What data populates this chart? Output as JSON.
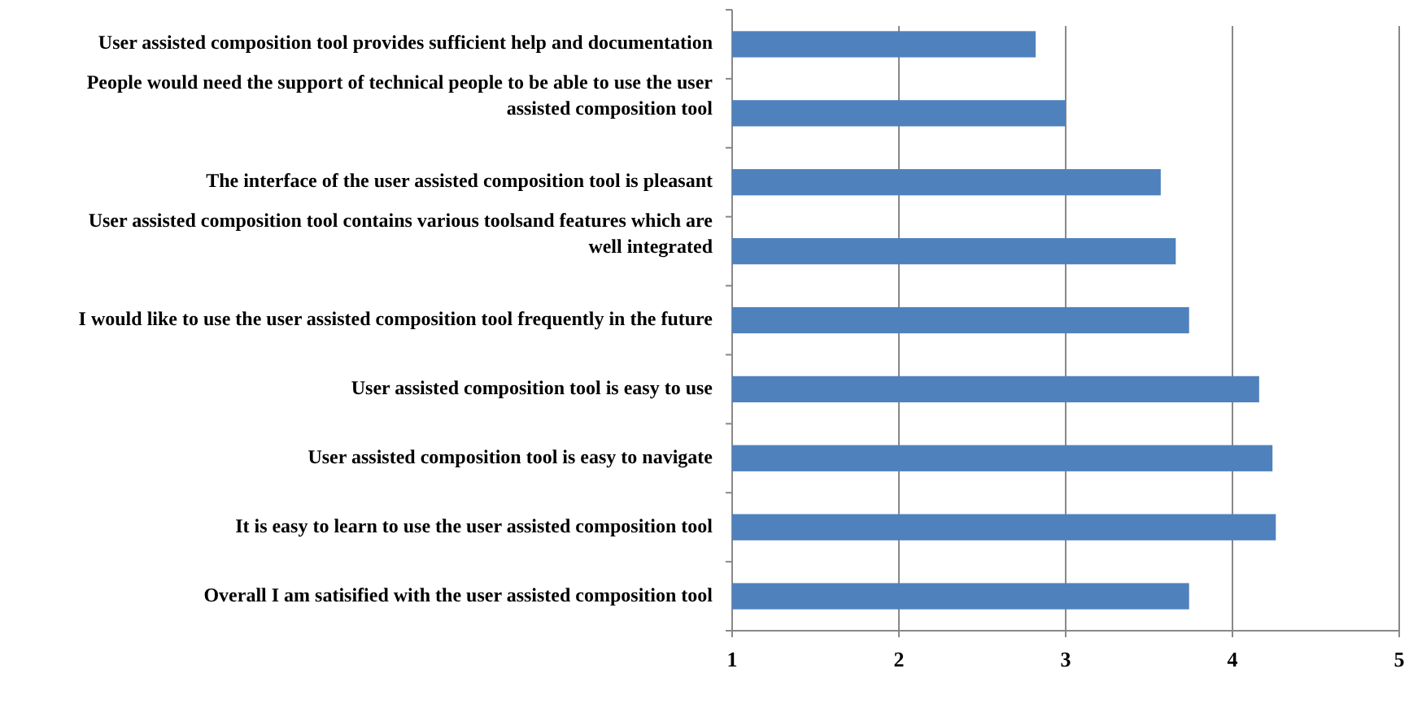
{
  "chart_data": {
    "type": "bar",
    "orientation": "horizontal",
    "categories": [
      "User assisted composition tool provides sufficient help and documentation",
      "People would need the support of technical people to be able to use the user assisted composition tool",
      "The interface of the user assisted composition tool is pleasant",
      "User assisted composition tool contains various toolsand features which are well integrated",
      "I would like to use the user assisted composition tool frequently in the future",
      "User assisted composition tool is easy to use",
      "User assisted composition tool is easy to navigate",
      "It is easy to learn to use the user assisted composition tool",
      "Overall I am satisified with the user assisted composition tool"
    ],
    "values": [
      2.82,
      3.0,
      3.57,
      3.66,
      3.74,
      4.16,
      4.24,
      4.26,
      3.74
    ],
    "color": "#4f81bd",
    "xlim": [
      1,
      5
    ],
    "xticks": [
      1,
      2,
      3,
      4,
      5
    ],
    "grid": "x"
  }
}
